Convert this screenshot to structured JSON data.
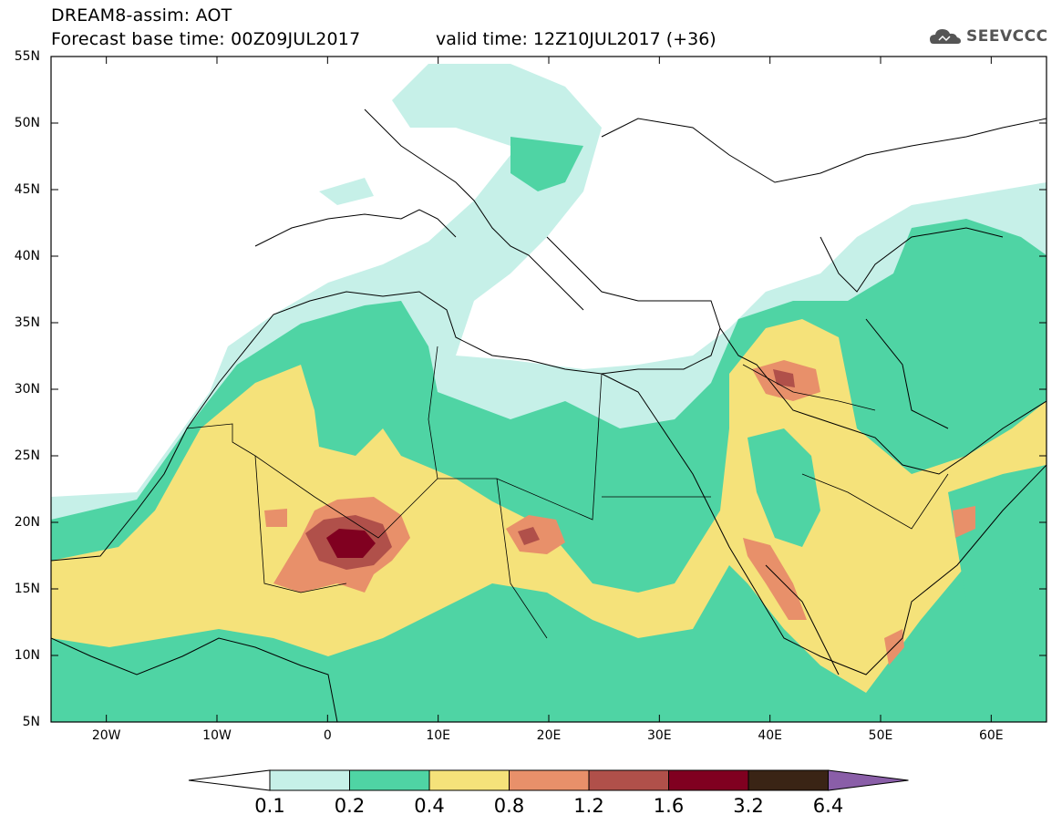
{
  "header": {
    "title": "DREAM8-assim: AOT",
    "forecast_base": "Forecast base time: 00Z09JUL2017",
    "valid_time": "valid time: 12Z10JUL2017 (+36)",
    "logo_text": "SEEVCCC"
  },
  "map": {
    "lat_labels": [
      "55N",
      "50N",
      "45N",
      "40N",
      "35N",
      "30N",
      "25N",
      "20N",
      "15N",
      "10N",
      "5N"
    ],
    "lon_labels": [
      "20W",
      "10W",
      "0",
      "10E",
      "20E",
      "30E",
      "40E",
      "50E",
      "60E"
    ],
    "lat_range": [
      5,
      55
    ],
    "lon_range": [
      -25,
      65
    ]
  },
  "colorbar": {
    "levels": [
      "0.1",
      "0.2",
      "0.4",
      "0.8",
      "1.2",
      "1.6",
      "3.2",
      "6.4"
    ],
    "colors": [
      "#ffffff",
      "#c6f0e8",
      "#4fd4a4",
      "#f5e27a",
      "#e8906a",
      "#b0504a",
      "#800020",
      "#3a2415",
      "#8a5ea8"
    ]
  },
  "fields": {
    "very_light": "#c6f0e8",
    "light": "#4fd4a4",
    "moderate": "#f5e27a",
    "high": "#e8906a",
    "higher": "#b0504a",
    "highest": "#800020"
  }
}
